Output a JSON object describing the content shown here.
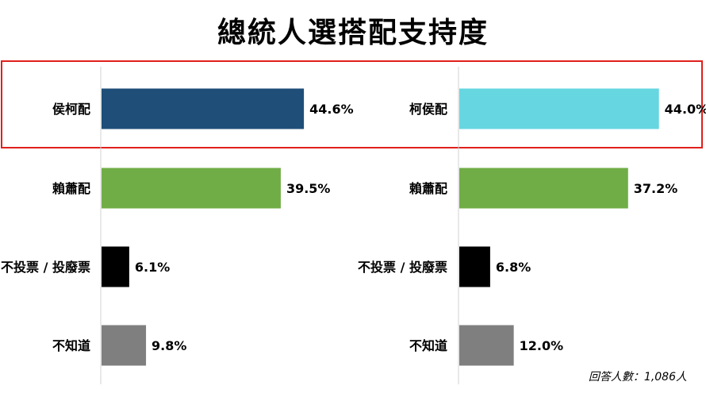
{
  "title": "總統人選搭配支持度",
  "note": "回答人數：1,086人",
  "chart_data": [
    {
      "type": "bar",
      "orientation": "horizontal",
      "categories": [
        "侯柯配",
        "賴蕭配",
        "不投票 / 投廢票",
        "不知道"
      ],
      "values": [
        44.6,
        39.5,
        6.1,
        9.8
      ],
      "value_labels": [
        "44.6%",
        "39.5%",
        "6.1%",
        "9.8%"
      ],
      "colors": [
        "#1f4e79",
        "#70ad47",
        "#000000",
        "#7f7f7f"
      ],
      "xlim": [
        0,
        100
      ],
      "highlighted_category": "侯柯配"
    },
    {
      "type": "bar",
      "orientation": "horizontal",
      "categories": [
        "柯侯配",
        "賴蕭配",
        "不投票 / 投廢票",
        "不知道"
      ],
      "values": [
        44.0,
        37.2,
        6.8,
        12.0
      ],
      "value_labels": [
        "44.0%",
        "37.2%",
        "6.8%",
        "12.0%"
      ],
      "colors": [
        "#66d6e0",
        "#70ad47",
        "#000000",
        "#7f7f7f"
      ],
      "xlim": [
        0,
        100
      ],
      "highlighted_category": "柯侯配"
    }
  ]
}
